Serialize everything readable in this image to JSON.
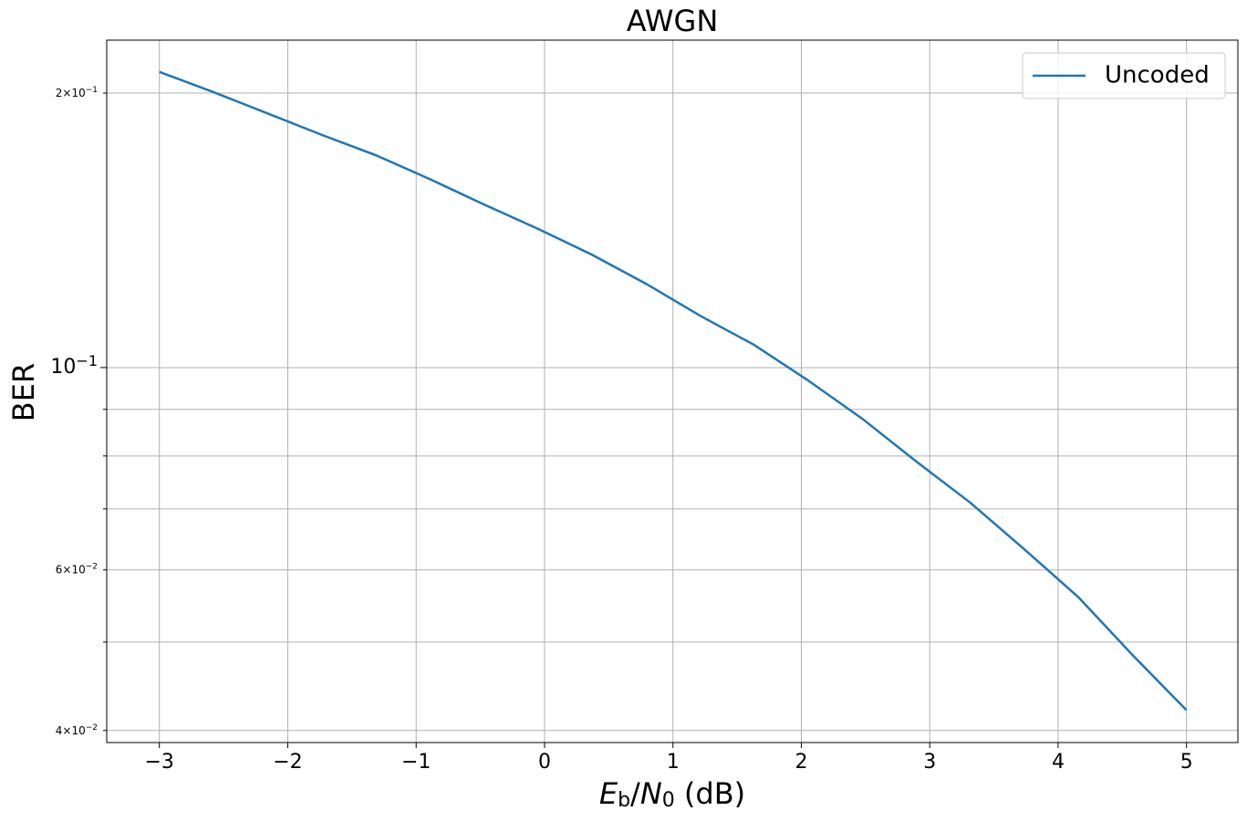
{
  "chart_data": {
    "type": "line",
    "title": "AWGN",
    "x_label": "Eb/N0 (dB)",
    "y_label": "BER",
    "x": [
      -3,
      -2.579,
      -2.158,
      -1.737,
      -1.316,
      -0.895,
      -0.474,
      -0.053,
      0.368,
      0.789,
      1.211,
      1.632,
      2.053,
      2.474,
      2.895,
      3.316,
      3.737,
      4.158,
      4.579,
      5
    ],
    "series": [
      {
        "name": "Uncoded",
        "color": "#1f77b4",
        "values": [
          0.211,
          0.2005,
          0.19,
          0.18,
          0.171,
          0.161,
          0.151,
          0.142,
          0.133,
          0.1236,
          0.114,
          0.1059,
          0.0968,
          0.0879,
          0.0789,
          0.0711,
          0.0632,
          0.056,
          0.0484,
          0.0421
        ]
      }
    ],
    "xlim": [
      -3.41,
      5.4
    ],
    "xticks": [
      {
        "value": -3,
        "label": "−3"
      },
      {
        "value": -2,
        "label": "−2"
      },
      {
        "value": -1,
        "label": "−1"
      },
      0,
      1,
      2,
      3,
      4,
      5
    ],
    "ylim": [
      0.0388,
      0.2286
    ],
    "log_y": true,
    "yticks": [
      {
        "value": 0.04,
        "label": "4×10−2"
      },
      {
        "value": 0.06,
        "label": "6×10−2"
      },
      {
        "value": 0.1,
        "label": "10−1"
      },
      {
        "value": 0.2,
        "label": "2×10−1"
      }
    ],
    "yminor_ticks": [
      0.05,
      0.07,
      0.08,
      0.09
    ],
    "grid": true,
    "legend": "upper right"
  }
}
